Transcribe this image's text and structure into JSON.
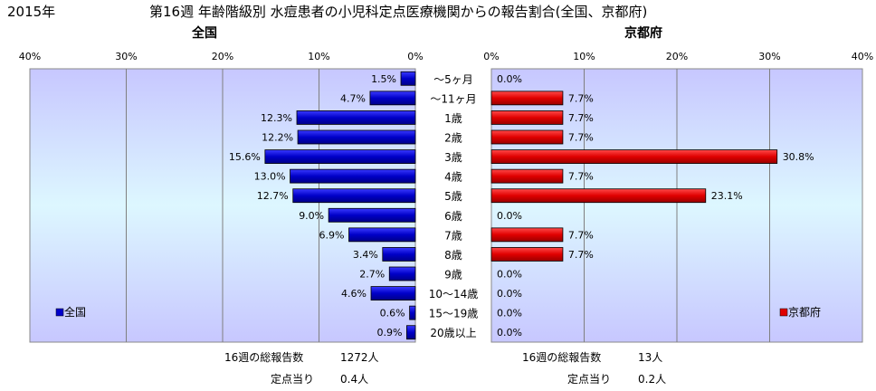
{
  "year_label": "2015年",
  "title": "第16週 年齢階級別 水痘患者の小児科定点医療機関からの報告割合(全国、京都府)",
  "categories": [
    "～5ヶ月",
    "～11ヶ月",
    "1歳",
    "2歳",
    "3歳",
    "4歳",
    "5歳",
    "6歳",
    "7歳",
    "8歳",
    "9歳",
    "10～14歳",
    "15～19歳",
    "20歳以上"
  ],
  "panels": {
    "national": {
      "title": "全国",
      "legend": "全国",
      "color": "#0000cc",
      "total_label": "16週の総報告数",
      "total_value": "1272人",
      "per_label": "定点当り",
      "per_value": "0.4人"
    },
    "kyoto": {
      "title": "京都府",
      "legend": "京都府",
      "color": "#e00000",
      "total_label": "16週の総報告数",
      "total_value": "13人",
      "per_label": "定点当り",
      "per_value": "0.2人"
    }
  },
  "chart_data": [
    {
      "type": "bar",
      "orientation": "horizontal",
      "direction": "right-to-left",
      "title": "全国",
      "categories": [
        "～5ヶ月",
        "～11ヶ月",
        "1歳",
        "2歳",
        "3歳",
        "4歳",
        "5歳",
        "6歳",
        "7歳",
        "8歳",
        "9歳",
        "10～14歳",
        "15～19歳",
        "20歳以上"
      ],
      "series": [
        {
          "name": "全国",
          "values": [
            1.5,
            4.7,
            12.3,
            12.2,
            15.6,
            13.0,
            12.7,
            9.0,
            6.9,
            3.4,
            2.7,
            4.6,
            0.6,
            0.9
          ]
        }
      ],
      "data_labels": [
        "1.5%",
        "4.7%",
        "12.3%",
        "12.2%",
        "15.6%",
        "13.0%",
        "12.7%",
        "9.0%",
        "6.9%",
        "3.4%",
        "2.7%",
        "4.6%",
        "0.6%",
        "0.9%"
      ],
      "xlim": [
        0,
        40
      ],
      "ticks": [
        "40%",
        "30%",
        "20%",
        "10%",
        "0%"
      ],
      "grid": true,
      "legend": "bottom-left"
    },
    {
      "type": "bar",
      "orientation": "horizontal",
      "direction": "left-to-right",
      "title": "京都府",
      "categories": [
        "～5ヶ月",
        "～11ヶ月",
        "1歳",
        "2歳",
        "3歳",
        "4歳",
        "5歳",
        "6歳",
        "7歳",
        "8歳",
        "9歳",
        "10～14歳",
        "15～19歳",
        "20歳以上"
      ],
      "series": [
        {
          "name": "京都府",
          "values": [
            0.0,
            7.7,
            7.7,
            7.7,
            30.8,
            7.7,
            23.1,
            0.0,
            7.7,
            7.7,
            0.0,
            0.0,
            0.0,
            0.0
          ]
        }
      ],
      "data_labels": [
        "0.0%",
        "7.7%",
        "7.7%",
        "7.7%",
        "30.8%",
        "7.7%",
        "23.1%",
        "0.0%",
        "7.7%",
        "7.7%",
        "0.0%",
        "0.0%",
        "0.0%",
        "0.0%"
      ],
      "xlim": [
        0,
        40
      ],
      "ticks": [
        "0%",
        "10%",
        "20%",
        "30%",
        "40%"
      ],
      "grid": true,
      "legend": "bottom-right"
    }
  ]
}
